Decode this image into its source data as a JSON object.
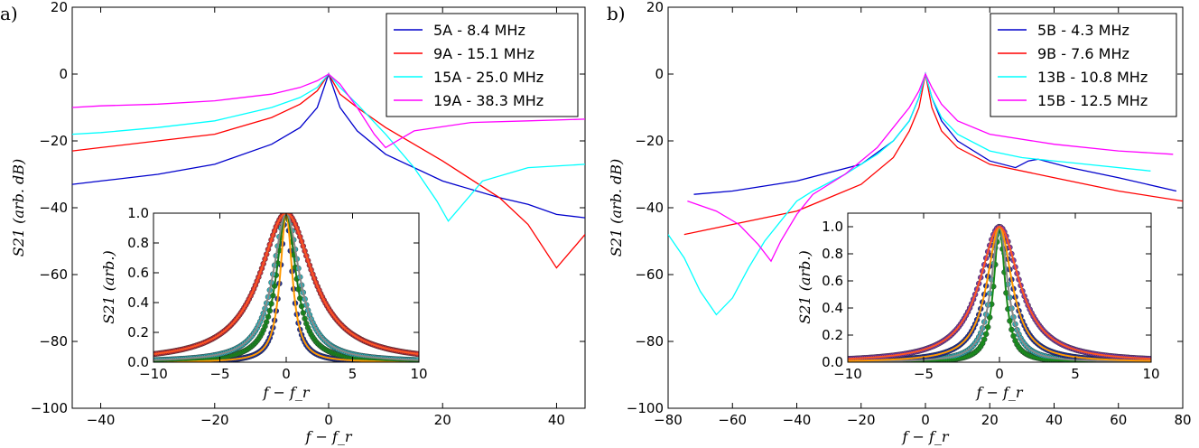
{
  "chart_data": [
    {
      "panel": "a)",
      "type": "line",
      "xlabel": "f − f_r",
      "ylabel": "S21 (arb. dB)",
      "xlim": [
        -45,
        45
      ],
      "ylim": [
        -100,
        20
      ],
      "xticks": [
        -40,
        -20,
        0,
        20,
        40
      ],
      "yticks": [
        -100,
        -80,
        -60,
        -40,
        -20,
        0,
        20
      ],
      "series": [
        {
          "name": "5A - 8.4 MHz",
          "color": "#0000cc",
          "x": [
            -45,
            -40,
            -30,
            -20,
            -10,
            -5,
            -2,
            0,
            2,
            5,
            10,
            20,
            30,
            35,
            40,
            45
          ],
          "y": [
            -33,
            -32,
            -30,
            -27,
            -21,
            -16,
            -10,
            0,
            -10,
            -17,
            -24,
            -32,
            -37,
            -39,
            -42,
            -43
          ]
        },
        {
          "name": "9A - 15.1 MHz",
          "color": "#ff0000",
          "x": [
            -45,
            -40,
            -30,
            -20,
            -10,
            -5,
            -2,
            0,
            2,
            5,
            10,
            20,
            30,
            35,
            40,
            45
          ],
          "y": [
            -23,
            -22,
            -20,
            -18,
            -13,
            -9,
            -5,
            0,
            -6,
            -10,
            -16,
            -26,
            -37,
            -45,
            -58,
            -48
          ]
        },
        {
          "name": "15A - 25.0 MHz",
          "color": "#00ffff",
          "x": [
            -45,
            -40,
            -30,
            -20,
            -10,
            -5,
            -2,
            0,
            2,
            5,
            10,
            15,
            19,
            21,
            23,
            27,
            35,
            45
          ],
          "y": [
            -18,
            -17.5,
            -16,
            -14,
            -10,
            -7,
            -4,
            0,
            -4,
            -9,
            -18,
            -28,
            -38,
            -44,
            -40,
            -32,
            -28,
            -27
          ]
        },
        {
          "name": "19A - 38.3 MHz",
          "color": "#ff00ff",
          "x": [
            -45,
            -40,
            -30,
            -20,
            -10,
            -5,
            -2,
            0,
            2,
            5,
            8,
            10,
            15,
            25,
            35,
            45
          ],
          "y": [
            -10,
            -9.5,
            -9,
            -8,
            -6,
            -4,
            -2,
            0,
            -3,
            -10,
            -18,
            -22,
            -17,
            -14.5,
            -14,
            -13.5
          ]
        }
      ],
      "inset": {
        "xlabel": "f − f_r",
        "ylabel": "S21 (arb.)",
        "xlim": [
          -10,
          10
        ],
        "ylim": [
          0,
          1.0
        ],
        "xticks": [
          -10,
          -5,
          0,
          5,
          10
        ],
        "yticks": [
          0.0,
          0.2,
          0.4,
          0.6,
          0.8,
          1.0
        ],
        "widths": [
          1.1,
          1.8,
          2.4,
          4.8
        ],
        "fit_colors": [
          "#ff9900",
          "#1a7a1a",
          "#888888",
          "#ff5522"
        ],
        "point_colors": [
          "#1a2fa0",
          "#1f8a2a",
          "#30b0b8",
          "#c8303a"
        ]
      }
    },
    {
      "panel": "b)",
      "type": "line",
      "xlabel": "f − f_r",
      "ylabel": "S21 (arb. dB)",
      "xlim": [
        -80,
        80
      ],
      "ylim": [
        -100,
        20
      ],
      "xticks": [
        -80,
        -60,
        -40,
        -20,
        0,
        20,
        40,
        60,
        80
      ],
      "yticks": [
        -100,
        -80,
        -60,
        -40,
        -20,
        0,
        20
      ],
      "series": [
        {
          "name": "5B - 4.3 MHz",
          "color": "#0000cc",
          "x": [
            -72,
            -60,
            -40,
            -20,
            -10,
            -5,
            -2,
            0,
            2,
            5,
            10,
            20,
            28,
            32,
            35,
            45,
            60,
            78
          ],
          "y": [
            -36,
            -35,
            -32,
            -27,
            -20,
            -14,
            -7,
            0,
            -7,
            -14,
            -20,
            -26,
            -28,
            -26,
            -25.5,
            -28,
            -31,
            -35
          ]
        },
        {
          "name": "9B - 7.6 MHz",
          "color": "#ff0000",
          "x": [
            -75,
            -60,
            -40,
            -20,
            -10,
            -5,
            -2,
            0,
            2,
            5,
            10,
            20,
            40,
            60,
            80
          ],
          "y": [
            -48,
            -45,
            -41,
            -33,
            -25,
            -17,
            -10,
            0,
            -10,
            -17,
            -22,
            -27,
            -31,
            -35,
            -38
          ]
        },
        {
          "name": "13B - 10.8 MHz",
          "color": "#00ffff",
          "x": [
            -80,
            -75,
            -70,
            -65,
            -60,
            -55,
            -50,
            -45,
            -40,
            -35,
            -25,
            -15,
            -10,
            -5,
            -2,
            0,
            2,
            5,
            10,
            20,
            30,
            50,
            70
          ],
          "y": [
            -48,
            -55,
            -65,
            -72,
            -67,
            -58,
            -50,
            -44,
            -38,
            -35,
            -30,
            -24,
            -20,
            -14,
            -7,
            0,
            -7,
            -13,
            -18,
            -23,
            -25,
            -27,
            -29
          ]
        },
        {
          "name": "15B - 12.5 MHz",
          "color": "#ff00ff",
          "x": [
            -74,
            -65,
            -58,
            -52,
            -48,
            -45,
            -40,
            -35,
            -25,
            -15,
            -10,
            -5,
            -2,
            0,
            2,
            5,
            10,
            20,
            40,
            60,
            77
          ],
          "y": [
            -38,
            -41,
            -45,
            -51,
            -56,
            -50,
            -42,
            -36,
            -30,
            -22,
            -16,
            -10,
            -5,
            0,
            -4,
            -9,
            -14,
            -18,
            -21,
            -23,
            -24
          ]
        }
      ],
      "inset": {
        "xlabel": "f − f_r",
        "ylabel": "S21 (arb.)",
        "xlim": [
          -10,
          10
        ],
        "ylim": [
          0,
          1.1
        ],
        "xticks": [
          -10,
          -5,
          0,
          5,
          10
        ],
        "yticks": [
          0.0,
          0.2,
          0.4,
          0.6,
          0.8,
          1.0
        ],
        "widths": [
          0.9,
          1.3,
          2.0,
          3.2
        ],
        "fit_colors": [
          "#1a8a1a",
          "#888888",
          "#ff9900",
          "#ff5522"
        ],
        "point_colors": [
          "#1f8a2a",
          "#30b0b8",
          "#1a2fa0",
          "#7a3aa8"
        ]
      }
    }
  ]
}
